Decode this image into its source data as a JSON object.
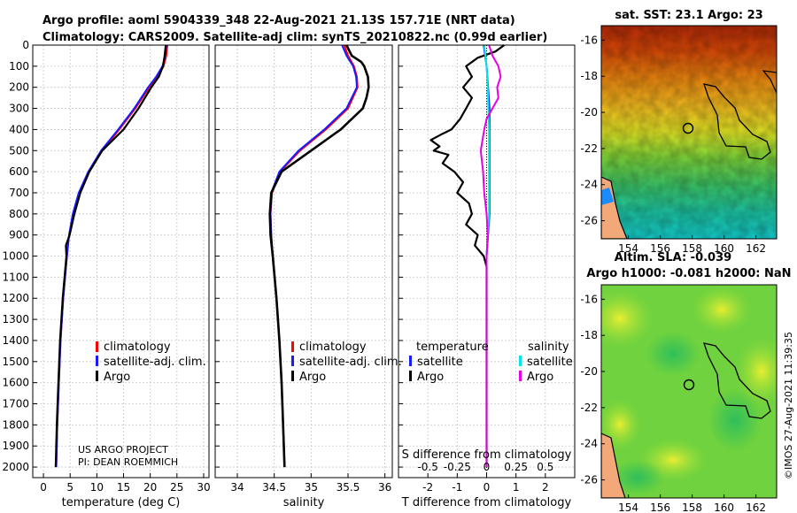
{
  "title": {
    "line1": "Argo profile: aoml 5904339_348 22-Aug-2021 21.13S 157.71E (NRT data)",
    "line2": "Climatology: CARS2009. Satellite-adj clim: synTS_20210822.nc (0.99d earlier)"
  },
  "colors": {
    "climatology": "#ff0000",
    "satellite_adj": "#1a1aff",
    "argo": "#000000",
    "sat_diff": "#00e5e5",
    "salinity_diff": "#e600e6"
  },
  "credit": {
    "line1": "US ARGO PROJECT",
    "line2": "PI: DEAN ROEMMICH"
  },
  "legend": {
    "climatology": "climatology",
    "satellite": "satellite-adj. clim.",
    "argo": "Argo"
  },
  "diff_legend": {
    "temp_title": "temperature",
    "sal_title": "salinity",
    "satellite": "satellite",
    "argo": "Argo"
  },
  "timestamp": "©IMOS 27-Aug-2021 11:39:35",
  "chart_data": [
    {
      "type": "line",
      "panel": "temperature",
      "xlabel": "temperature (deg C)",
      "ylabel": "",
      "xlim": [
        -2,
        31
      ],
      "ylim": [
        0,
        2050
      ],
      "y_reversed": true,
      "xticks": [
        0,
        5,
        10,
        15,
        20,
        25,
        30
      ],
      "yticks": [
        0,
        100,
        200,
        300,
        400,
        500,
        600,
        700,
        800,
        900,
        1000,
        1100,
        1200,
        1300,
        1400,
        1500,
        1600,
        1700,
        1800,
        1900,
        2000
      ],
      "grid": true,
      "series": [
        {
          "name": "climatology",
          "depth": [
            0,
            50,
            100,
            150,
            200,
            300,
            400,
            500,
            600,
            700,
            800,
            900,
            1000,
            1200,
            1400,
            1600,
            1800,
            2000
          ],
          "values": [
            23.2,
            23.0,
            22.5,
            21.3,
            19.8,
            17.2,
            14.2,
            11.0,
            8.6,
            6.8,
            5.6,
            4.8,
            4.4,
            3.7,
            3.2,
            2.9,
            2.6,
            2.4
          ]
        },
        {
          "name": "satellite-adj. clim.",
          "depth": [
            0,
            50,
            100,
            150,
            200,
            300,
            400,
            500,
            600,
            700,
            800,
            900,
            1000,
            1200,
            1400,
            1600,
            1800,
            2000
          ],
          "values": [
            23.0,
            22.8,
            22.3,
            21.1,
            19.6,
            17.0,
            14.0,
            10.8,
            8.4,
            6.6,
            5.5,
            4.8,
            4.4,
            3.7,
            3.2,
            2.9,
            2.6,
            2.4
          ]
        },
        {
          "name": "Argo",
          "depth": [
            0,
            50,
            100,
            150,
            200,
            300,
            400,
            450,
            500,
            600,
            700,
            800,
            900,
            950,
            1000,
            1200,
            1400,
            1600,
            1800,
            2000
          ],
          "values": [
            22.9,
            22.7,
            22.4,
            21.6,
            20.2,
            17.8,
            15.0,
            13.0,
            11.0,
            8.6,
            6.9,
            5.8,
            4.9,
            4.2,
            4.3,
            3.6,
            3.1,
            2.8,
            2.5,
            2.3
          ]
        }
      ],
      "legend": [
        "climatology",
        "satellite-adj. clim.",
        "Argo"
      ]
    },
    {
      "type": "line",
      "panel": "salinity",
      "xlabel": "salinity",
      "xlim": [
        33.7,
        36.1
      ],
      "ylim": [
        0,
        2050
      ],
      "y_reversed": true,
      "xticks": [
        34,
        34.5,
        35,
        35.5,
        36
      ],
      "grid": true,
      "series": [
        {
          "name": "climatology",
          "depth": [
            0,
            50,
            100,
            150,
            200,
            300,
            400,
            500,
            600,
            700,
            800,
            900,
            1000,
            1200,
            1400,
            1600,
            1800,
            2000
          ],
          "values": [
            35.45,
            35.5,
            35.58,
            35.62,
            35.63,
            35.5,
            35.2,
            34.85,
            34.58,
            34.47,
            34.45,
            34.46,
            34.48,
            34.53,
            34.57,
            34.6,
            34.62,
            34.64
          ]
        },
        {
          "name": "satellite-adj. clim.",
          "depth": [
            0,
            50,
            100,
            150,
            200,
            300,
            400,
            500,
            600,
            700,
            800,
            900,
            1000,
            1200,
            1400,
            1600,
            1800,
            2000
          ],
          "values": [
            35.42,
            35.48,
            35.57,
            35.61,
            35.62,
            35.48,
            35.18,
            34.83,
            34.57,
            34.46,
            34.45,
            34.46,
            34.48,
            34.53,
            34.57,
            34.6,
            34.62,
            34.64
          ]
        },
        {
          "name": "Argo",
          "depth": [
            0,
            50,
            80,
            100,
            150,
            200,
            250,
            300,
            400,
            500,
            600,
            700,
            800,
            900,
            1000,
            1200,
            1400,
            1600,
            1800,
            2000
          ],
          "values": [
            35.48,
            35.55,
            35.68,
            35.72,
            35.77,
            35.78,
            35.75,
            35.7,
            35.4,
            35.0,
            34.6,
            34.46,
            34.44,
            34.45,
            34.48,
            34.53,
            34.57,
            34.6,
            34.62,
            34.64
          ]
        }
      ],
      "legend": [
        "climatology",
        "satellite-adj. clim.",
        "Argo"
      ]
    },
    {
      "type": "line",
      "panel": "difference from climatology",
      "xlabel": "T difference from climatology",
      "xlabel_top": "S difference from climatology",
      "xlim": [
        -3,
        3
      ],
      "ylim": [
        0,
        2050
      ],
      "y_reversed": true,
      "xticks": [
        -2,
        -1,
        0,
        1,
        2
      ],
      "xticks_salinity": [
        -0.5,
        -0.25,
        0,
        0.25,
        0.5
      ],
      "grid": true,
      "series": [
        {
          "name": "temperature satellite",
          "depth": [
            0,
            50,
            100,
            200,
            300,
            400,
            500,
            600,
            700,
            800,
            900,
            1000,
            1500,
            2000
          ],
          "values": [
            -0.1,
            -0.05,
            0.0,
            0.05,
            0.1,
            0.1,
            0.1,
            0.1,
            0.1,
            0.1,
            0.05,
            0.0,
            0.0,
            0.0
          ]
        },
        {
          "name": "temperature Argo",
          "depth": [
            0,
            30,
            60,
            100,
            150,
            200,
            250,
            300,
            350,
            400,
            420,
            450,
            480,
            500,
            520,
            560,
            600,
            650,
            700,
            750,
            800,
            850,
            900,
            950,
            1000,
            1050,
            1500,
            2000
          ],
          "values": [
            0.6,
            0.3,
            -0.3,
            -0.7,
            -0.5,
            -0.8,
            -0.5,
            -0.7,
            -0.9,
            -1.2,
            -1.5,
            -1.9,
            -1.6,
            -1.8,
            -1.3,
            -1.5,
            -1.1,
            -0.8,
            -1.0,
            -0.6,
            -0.5,
            -0.7,
            -0.3,
            -0.4,
            -0.1,
            0.0,
            0.0,
            0.0
          ]
        },
        {
          "name": "salinity satellite",
          "depth": [
            0,
            50,
            100,
            200,
            400,
            600,
            800,
            1000,
            1500,
            2000
          ],
          "values": [
            -0.02,
            -0.01,
            0.0,
            0.01,
            0.02,
            0.02,
            0.02,
            0.0,
            0.0,
            0.0
          ]
        },
        {
          "name": "salinity Argo",
          "depth": [
            0,
            50,
            100,
            150,
            200,
            250,
            300,
            350,
            400,
            500,
            600,
            700,
            800,
            900,
            1000,
            1500,
            2000
          ],
          "values": [
            0.02,
            0.05,
            0.1,
            0.12,
            0.09,
            0.1,
            0.05,
            0.0,
            -0.02,
            -0.05,
            -0.03,
            -0.02,
            0.0,
            0.01,
            0.0,
            0.0,
            0.0
          ]
        }
      ],
      "legend": [
        "temperature satellite",
        "temperature Argo",
        "salinity satellite",
        "salinity Argo"
      ]
    },
    {
      "type": "heatmap",
      "panel": "sat. SST",
      "title": "sat. SST: 23.1 Argo: 23",
      "xticks": [
        154,
        156,
        158,
        160,
        162
      ],
      "yticks": [
        -16,
        -18,
        -20,
        -22,
        -24,
        -26
      ],
      "xlim": [
        152.3,
        163.3
      ],
      "ylim": [
        -27,
        -15.2
      ],
      "marker": {
        "lon": 157.71,
        "lat": -21.13
      }
    },
    {
      "type": "heatmap",
      "panel": "Altim. SLA",
      "title_line1": "Altim. SLA: -0.039",
      "title_line2": "Argo h1000: -0.081 h2000: NaN",
      "xticks": [
        154,
        156,
        158,
        160,
        162
      ],
      "yticks": [
        -16,
        -18,
        -20,
        -22,
        -24,
        -26
      ],
      "xlim": [
        152.3,
        163.3
      ],
      "ylim": [
        -27,
        -15.2
      ],
      "marker": {
        "lon": 157.71,
        "lat": -21.13
      }
    }
  ]
}
